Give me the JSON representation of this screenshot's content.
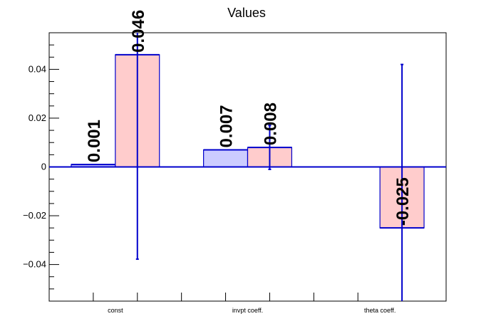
{
  "chart_data": {
    "type": "bar",
    "title": "Values",
    "categories": [
      "const",
      "invpt coeff.",
      "theta coeff."
    ],
    "ylim": [
      -0.055,
      0.055
    ],
    "yticks": [
      -0.04,
      -0.02,
      0,
      0.02,
      0.04
    ],
    "ytick_labels": [
      "−0.04",
      "−0.02",
      "0",
      "0.02",
      "0.04"
    ],
    "grid": false,
    "series": [
      {
        "color": "#ccccff",
        "edge_color": "#0000cc",
        "values": [
          0.001,
          0.007,
          null
        ],
        "errors": [
          null,
          null,
          null
        ],
        "labels": [
          "0.001",
          "0.007",
          ""
        ]
      },
      {
        "color": "#ffcccc",
        "edge_color": "#0000cc",
        "values": [
          0.046,
          0.008,
          -0.025
        ],
        "errors": [
          0.0838,
          0.009,
          0.067
        ],
        "labels": [
          "0.046",
          "0.008",
          "-0.025"
        ]
      }
    ]
  }
}
